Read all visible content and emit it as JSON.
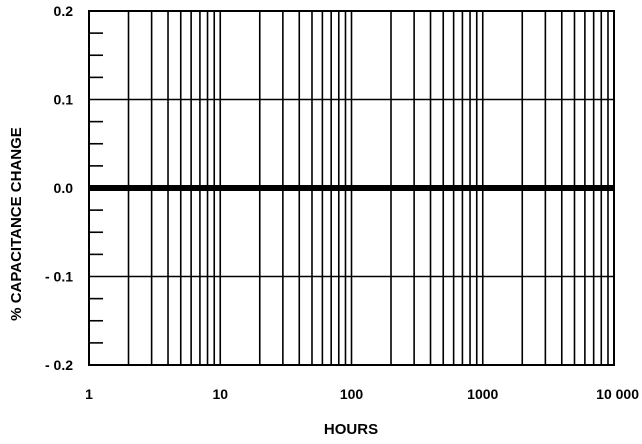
{
  "chart_data": {
    "type": "line",
    "title": "",
    "xlabel": "HOURS",
    "ylabel": "% CAPACITANCE CHANGE",
    "x_scale": "log",
    "xlim": [
      1,
      10000
    ],
    "ylim": [
      -0.2,
      0.2
    ],
    "x_ticks": [
      {
        "value": 1,
        "label": "1"
      },
      {
        "value": 10,
        "label": "10"
      },
      {
        "value": 100,
        "label": "100"
      },
      {
        "value": 1000,
        "label": "1000"
      },
      {
        "value": 10000,
        "label": "10 000"
      }
    ],
    "y_ticks": [
      {
        "value": 0.2,
        "label": "0.2"
      },
      {
        "value": 0.1,
        "label": "0.1"
      },
      {
        "value": 0.0,
        "label": "0.0"
      },
      {
        "value": -0.1,
        "label": "- 0.1"
      },
      {
        "value": -0.2,
        "label": "- 0.2"
      }
    ],
    "y_minor_step": 0.025,
    "grid": true,
    "series": [
      {
        "x": [
          1,
          10,
          100,
          1000,
          10000
        ],
        "y": [
          0,
          0,
          0,
          0,
          0
        ],
        "color": "#000000"
      }
    ]
  }
}
